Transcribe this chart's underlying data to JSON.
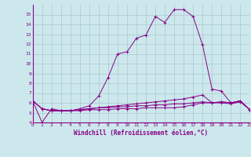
{
  "xlabel": "Windchill (Refroidissement éolien,°C)",
  "bg_color": "#cce8ec",
  "grid_color": "#aac8cc",
  "line_color": "#880088",
  "x_values": [
    0,
    1,
    2,
    3,
    4,
    5,
    6,
    7,
    8,
    9,
    10,
    11,
    12,
    13,
    14,
    15,
    16,
    17,
    18,
    19,
    20,
    21,
    22,
    23
  ],
  "series": {
    "main": [
      6.2,
      4.0,
      5.4,
      5.2,
      5.2,
      5.4,
      5.7,
      6.7,
      8.6,
      11.0,
      11.2,
      12.6,
      12.9,
      14.8,
      14.2,
      15.5,
      15.5,
      14.8,
      11.9,
      7.4,
      7.2,
      6.0,
      6.2,
      5.3
    ],
    "flat1": [
      6.2,
      5.4,
      5.2,
      5.2,
      5.2,
      5.3,
      5.4,
      5.5,
      5.6,
      5.7,
      5.8,
      5.9,
      6.0,
      6.1,
      6.2,
      6.3,
      6.4,
      6.6,
      6.8,
      6.0,
      6.1,
      6.0,
      6.2,
      5.3
    ],
    "flat2": [
      6.2,
      5.4,
      5.2,
      5.2,
      5.2,
      5.3,
      5.4,
      5.5,
      5.5,
      5.6,
      5.6,
      5.7,
      5.7,
      5.8,
      5.8,
      5.9,
      5.9,
      6.0,
      6.1,
      6.0,
      6.1,
      6.0,
      6.2,
      5.3
    ],
    "flat3": [
      6.2,
      5.4,
      5.2,
      5.2,
      5.2,
      5.2,
      5.3,
      5.3,
      5.3,
      5.4,
      5.4,
      5.4,
      5.5,
      5.5,
      5.5,
      5.5,
      5.6,
      5.8,
      6.0,
      6.0,
      6.0,
      5.9,
      6.1,
      5.3
    ]
  },
  "ylim": [
    4,
    16
  ],
  "xlim": [
    0,
    23
  ],
  "yticks": [
    4,
    5,
    6,
    7,
    8,
    9,
    10,
    11,
    12,
    13,
    14,
    15
  ],
  "xticks": [
    0,
    1,
    2,
    3,
    4,
    5,
    6,
    7,
    8,
    9,
    10,
    11,
    12,
    13,
    14,
    15,
    16,
    17,
    18,
    19,
    20,
    21,
    22,
    23
  ]
}
